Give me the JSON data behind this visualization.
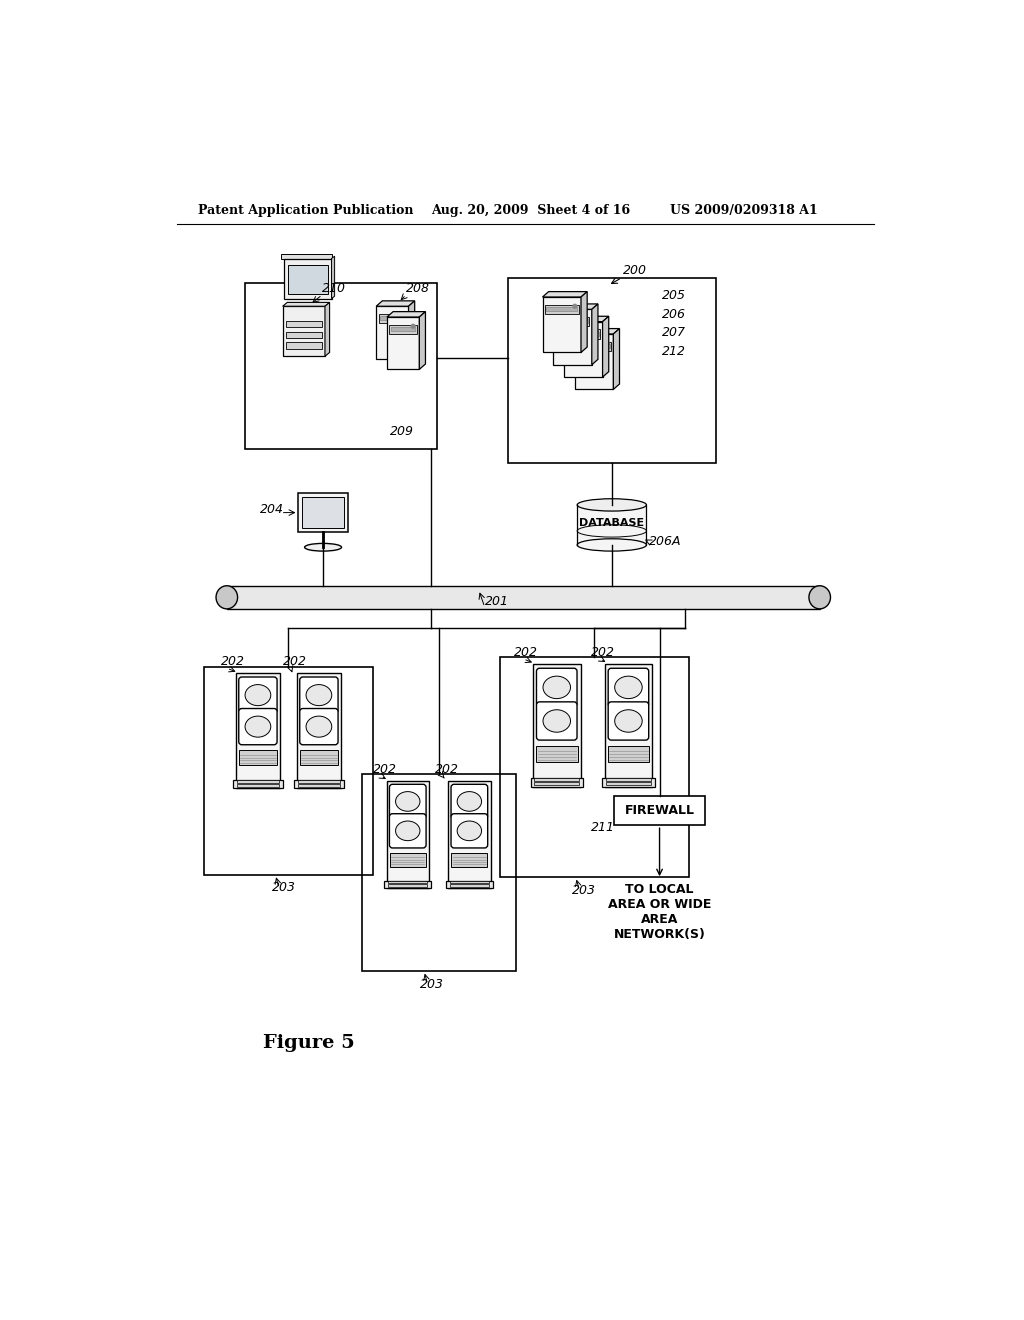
{
  "bg_color": "#ffffff",
  "header_left": "Patent Application Publication",
  "header_mid": "Aug. 20, 2009  Sheet 4 of 16",
  "header_right": "US 2009/0209318 A1",
  "figure_label": "Figure 5",
  "label_200": "200",
  "label_201": "201",
  "label_202": "202",
  "label_203": "203",
  "label_204": "204",
  "label_205": "205",
  "label_206": "206",
  "label_207": "207",
  "label_208": "208",
  "label_209": "209",
  "label_210": "210",
  "label_211": "211",
  "label_212": "212",
  "label_206A": "206A",
  "firewall_text": "FIREWALL",
  "database_text": "DATABASE",
  "network_text": "TO LOCAL\nAREA OR WIDE\nAREA\nNETWORK(S)"
}
